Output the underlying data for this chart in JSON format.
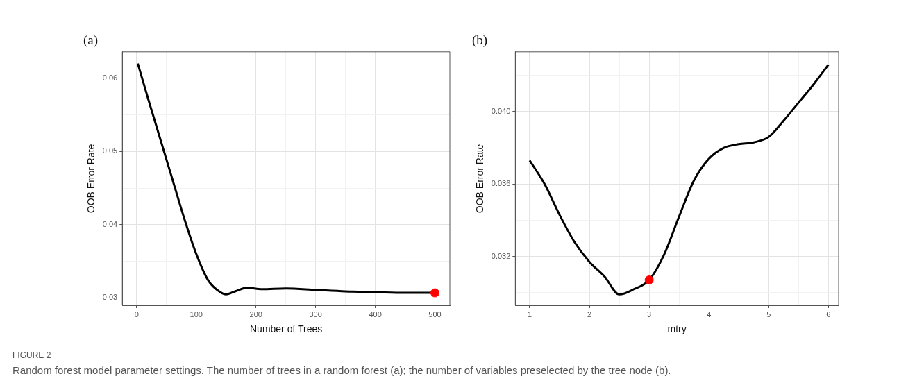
{
  "chart_data": [
    {
      "type": "line",
      "title": "(a)",
      "xlabel": "Number of Trees",
      "ylabel": "OOB Error Rate",
      "xlim": [
        -24,
        525
      ],
      "ylim": [
        0.029,
        0.0636
      ],
      "xticks": [
        0,
        {
          "value": 50,
          "label": null
        },
        100,
        {
          "value": 150,
          "label": null
        },
        200,
        {
          "value": 250,
          "label": null
        },
        300,
        {
          "value": 350,
          "label": null
        },
        400,
        {
          "value": 450,
          "label": null
        },
        500
      ],
      "yticks": [
        0.03,
        {
          "value": 0.035,
          "label": null
        },
        0.04,
        {
          "value": 0.045,
          "label": null
        },
        0.05,
        {
          "value": 0.055,
          "label": null
        },
        0.06
      ],
      "grid": true,
      "legend": false,
      "series": [
        {
          "marker": "none",
          "color": "#000000",
          "x": [
            2,
            20,
            40,
            60,
            80,
            100,
            120,
            140,
            150,
            165,
            185,
            210,
            250,
            300,
            350,
            400,
            450,
            500
          ],
          "values": [
            0.062,
            0.057,
            0.0516,
            0.0462,
            0.0408,
            0.036,
            0.0324,
            0.0308,
            0.0305,
            0.0309,
            0.0314,
            0.0312,
            0.0313,
            0.0311,
            0.0309,
            0.0308,
            0.0307,
            0.0307
          ]
        },
        {
          "type": "scatter",
          "marker": "circle",
          "color": "#ff0000",
          "x": [
            500
          ],
          "values": [
            0.0307
          ]
        }
      ],
      "annotations": [
        "FIGURE 2",
        "Random forest model parameter settings. The number of trees in a random forest (a); the number of variables preselected by the tree node (b)."
      ]
    },
    {
      "type": "line",
      "title": "(b)",
      "xlabel": "mtry",
      "ylabel": "OOB Error Rate",
      "xlim": [
        0.76,
        6.17
      ],
      "ylim": [
        0.0293,
        0.0433
      ],
      "xticks": [
        1,
        {
          "value": 1.5,
          "label": null
        },
        2,
        {
          "value": 2.5,
          "label": null
        },
        3,
        {
          "value": 3.5,
          "label": null
        },
        4,
        {
          "value": 4.5,
          "label": null
        },
        5,
        {
          "value": 5.5,
          "label": null
        },
        6
      ],
      "yticks": [
        {
          "value": 0.03,
          "label": null
        },
        {
          "value": 0.032,
          "label": "0.032"
        },
        {
          "value": 0.034,
          "label": null
        },
        {
          "value": 0.036,
          "label": "0.036"
        },
        {
          "value": 0.038,
          "label": null
        },
        {
          "value": 0.04,
          "label": "0.040"
        },
        {
          "value": 0.042,
          "label": null
        }
      ],
      "grid": true,
      "legend": false,
      "series": [
        {
          "marker": "none",
          "color": "#000000",
          "x": [
            1,
            1.25,
            1.5,
            1.75,
            2,
            2.25,
            2.5,
            2.75,
            3,
            3.25,
            3.5,
            3.75,
            4,
            4.25,
            4.5,
            4.75,
            5,
            5.25,
            5.5,
            5.75,
            6
          ],
          "values": [
            0.0373,
            0.036,
            0.0343,
            0.0328,
            0.0317,
            0.0309,
            0.0299,
            0.0302,
            0.0307,
            0.0321,
            0.0342,
            0.0362,
            0.0374,
            0.038,
            0.0382,
            0.0383,
            0.0386,
            0.0395,
            0.0405,
            0.0415,
            0.0426
          ]
        },
        {
          "type": "scatter",
          "marker": "circle",
          "color": "#ff0000",
          "x": [
            3
          ],
          "values": [
            0.0307
          ]
        }
      ]
    }
  ]
}
